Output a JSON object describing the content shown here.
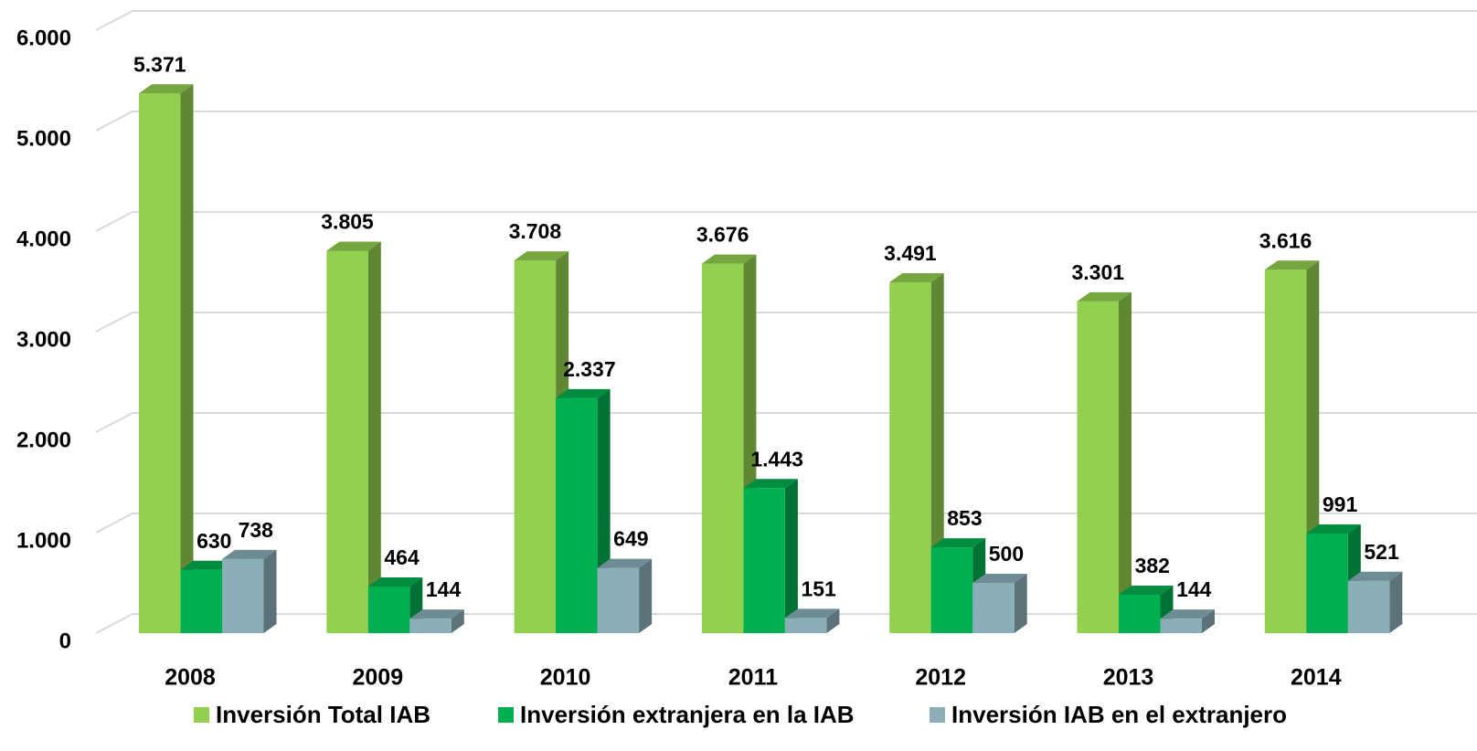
{
  "chart_data": {
    "type": "bar3d",
    "categories": [
      "2008",
      "2009",
      "2010",
      "2011",
      "2012",
      "2013",
      "2014"
    ],
    "series": [
      {
        "name": "Inversión Total IAB",
        "color": "#92d050",
        "values": [
          5371,
          3805,
          3708,
          3676,
          3491,
          3301,
          3616
        ],
        "value_labels": [
          "5.371",
          "3.805",
          "3.708",
          "3.676",
          "3.491",
          "3.301",
          "3.616"
        ]
      },
      {
        "name": "Inversión extranjera en la IAB",
        "color": "#00b050",
        "values": [
          630,
          464,
          2337,
          1443,
          853,
          382,
          991
        ],
        "value_labels": [
          "630",
          "464",
          "2.337",
          "1.443",
          "853",
          "382",
          "991"
        ]
      },
      {
        "name": "Inversión IAB en el extranjero",
        "color": "#8aafb8",
        "values": [
          738,
          144,
          649,
          151,
          500,
          144,
          521
        ],
        "value_labels": [
          "738",
          "144",
          "649",
          "151",
          "500",
          "144",
          "521"
        ]
      }
    ],
    "ylim": [
      0,
      6000
    ],
    "yticks": [
      0,
      {
        "value": 1000,
        "label": "1.000"
      },
      {
        "value": 2000,
        "label": "2.000"
      },
      {
        "value": 3000,
        "label": "3.000"
      },
      {
        "value": 4000,
        "label": "4.000"
      },
      {
        "value": 5000,
        "label": "5.000"
      },
      {
        "value": 6000,
        "label": "6.000"
      }
    ],
    "grid": true,
    "legend": "bottom"
  }
}
